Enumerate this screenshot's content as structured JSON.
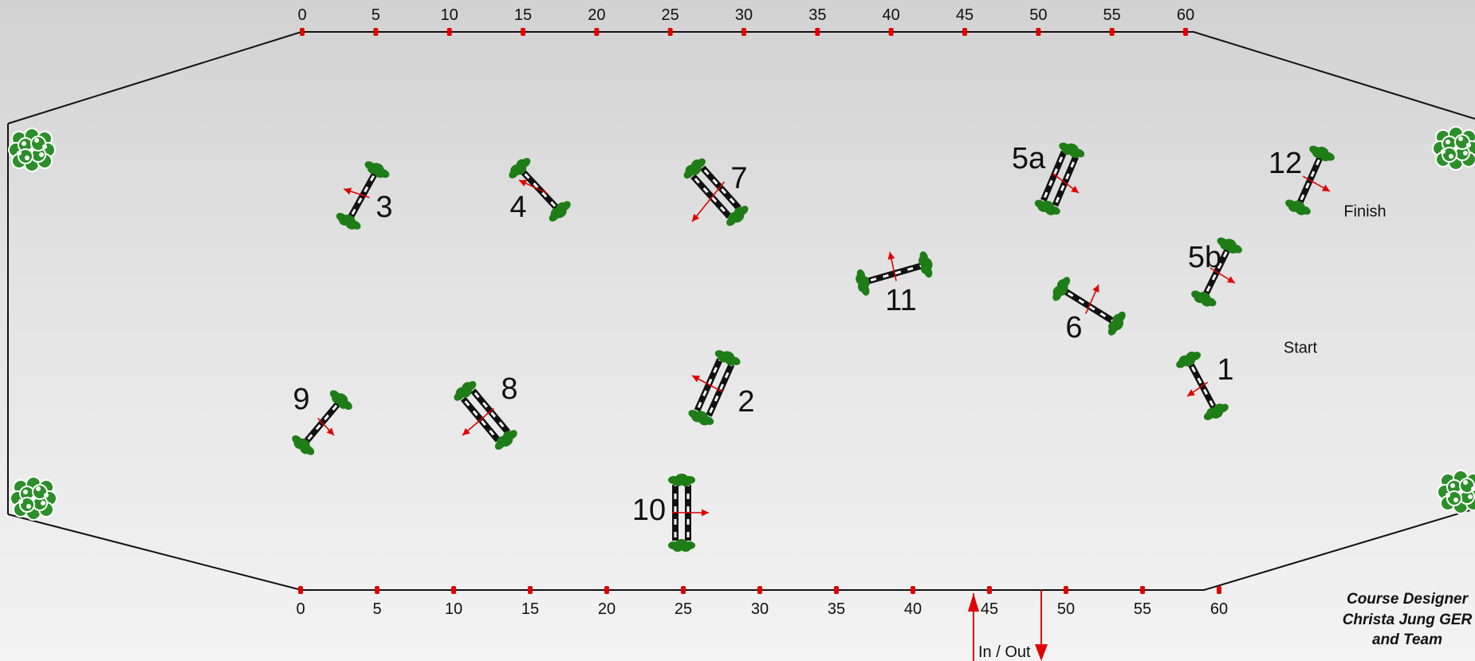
{
  "ruler_top": {
    "labels": [
      "0",
      "5",
      "10",
      "15",
      "20",
      "25",
      "30",
      "35",
      "40",
      "45",
      "50",
      "55",
      "60"
    ]
  },
  "ruler_bottom": {
    "labels": [
      "0",
      "5",
      "10",
      "15",
      "20",
      "25",
      "30",
      "35",
      "40",
      "45",
      "50",
      "55",
      "60"
    ]
  },
  "colors": {
    "border": "#111111",
    "marker": "#e00000",
    "rail_dark": "#111111",
    "rail_light": "#ffffff",
    "foliage": "#1e7d16",
    "arrow": "#e00000",
    "hedge": "#2c8f2a"
  },
  "fences": [
    {
      "label": "3",
      "kind": "vertical"
    },
    {
      "label": "4",
      "kind": "vertical"
    },
    {
      "label": "7",
      "kind": "oxer"
    },
    {
      "label": "5a",
      "kind": "oxer"
    },
    {
      "label": "12",
      "kind": "vertical"
    },
    {
      "label": "11",
      "kind": "vertical"
    },
    {
      "label": "5b",
      "kind": "vertical"
    },
    {
      "label": "6",
      "kind": "vertical"
    },
    {
      "label": "1",
      "kind": "vertical"
    },
    {
      "label": "9",
      "kind": "vertical"
    },
    {
      "label": "8",
      "kind": "oxer"
    },
    {
      "label": "2",
      "kind": "oxer"
    },
    {
      "label": "10",
      "kind": "oxer"
    }
  ],
  "areas": {
    "finish": "Finish",
    "start": "Start"
  },
  "gate": {
    "label": "In / Out"
  },
  "credits": {
    "line1": "Course Designer",
    "line2": "Christa Jung  GER",
    "line3": "and Team"
  }
}
